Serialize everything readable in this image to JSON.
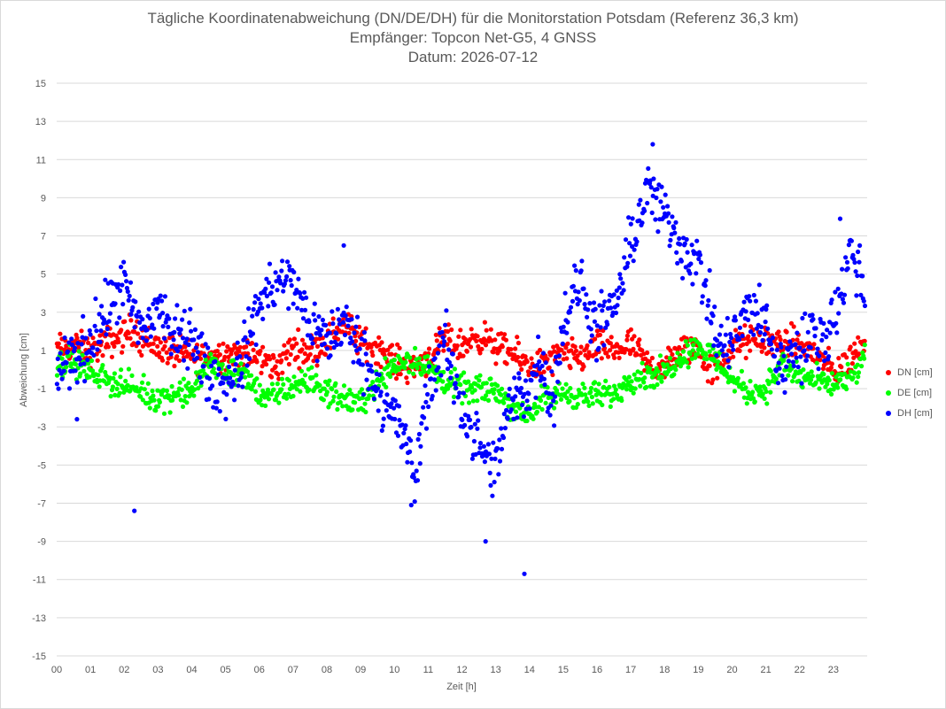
{
  "chart_data": {
    "type": "scatter",
    "title": "Tägliche Koordinatenabweichung (DN/DE/DH) für die Monitorstation Potsdam (Referenz 36,3 km)",
    "subtitle_1": "Empfänger: Topcon Net-G5, 4 GNSS",
    "subtitle_2": "Datum: 2026-07-12",
    "xlabel": "Zeit [h]",
    "ylabel": "Abweichung [cm]",
    "xlim": [
      0,
      24
    ],
    "ylim": [
      -15,
      15
    ],
    "x_ticks": [
      0,
      1,
      2,
      3,
      4,
      5,
      6,
      7,
      8,
      9,
      10,
      11,
      12,
      13,
      14,
      15,
      16,
      17,
      18,
      19,
      20,
      21,
      22,
      23
    ],
    "x_tick_labels": [
      "00",
      "01",
      "02",
      "03",
      "04",
      "05",
      "06",
      "07",
      "08",
      "09",
      "10",
      "11",
      "12",
      "13",
      "14",
      "15",
      "16",
      "17",
      "18",
      "19",
      "20",
      "21",
      "22",
      "23"
    ],
    "y_ticks": [
      15,
      13,
      11,
      9,
      7,
      5,
      3,
      1,
      -1,
      -3,
      -5,
      -7,
      -9,
      -11,
      -13,
      -15
    ],
    "y_tick_labels": [
      "15",
      "13",
      "11",
      "9",
      "7",
      "5",
      "3",
      "1",
      "-1",
      "-3",
      "-5",
      "-7",
      "-9",
      "-11",
      "-13",
      "-15"
    ],
    "grid": "horizontal",
    "legend_position": "right",
    "samples_per_hour": 40,
    "series": [
      {
        "name": "DN [cm]",
        "color": "#ff0000",
        "anchors": [
          [
            0.0,
            1.0
          ],
          [
            0.5,
            1.2
          ],
          [
            1.0,
            1.0
          ],
          [
            1.5,
            1.4
          ],
          [
            2.0,
            1.8
          ],
          [
            2.3,
            2.2
          ],
          [
            2.5,
            1.6
          ],
          [
            3.0,
            1.2
          ],
          [
            3.5,
            0.9
          ],
          [
            4.0,
            0.7
          ],
          [
            4.5,
            0.7
          ],
          [
            5.0,
            0.9
          ],
          [
            5.5,
            0.8
          ],
          [
            6.0,
            0.6
          ],
          [
            6.5,
            0.1
          ],
          [
            7.0,
            1.2
          ],
          [
            7.5,
            1.0
          ],
          [
            8.0,
            1.5
          ],
          [
            8.5,
            2.5
          ],
          [
            9.0,
            1.4
          ],
          [
            9.5,
            1.2
          ],
          [
            10.0,
            0.4
          ],
          [
            10.5,
            0.1
          ],
          [
            11.0,
            0.6
          ],
          [
            11.5,
            1.5
          ],
          [
            12.0,
            1.2
          ],
          [
            12.5,
            1.8
          ],
          [
            13.0,
            1.2
          ],
          [
            13.5,
            0.8
          ],
          [
            14.0,
            0.2
          ],
          [
            14.5,
            0.3
          ],
          [
            15.0,
            0.8
          ],
          [
            15.5,
            0.6
          ],
          [
            16.0,
            1.2
          ],
          [
            16.5,
            1.0
          ],
          [
            17.0,
            1.3
          ],
          [
            17.5,
            0.2
          ],
          [
            18.0,
            0.1
          ],
          [
            18.5,
            1.0
          ],
          [
            19.0,
            1.2
          ],
          [
            19.3,
            0.0
          ],
          [
            19.6,
            0.2
          ],
          [
            20.0,
            1.2
          ],
          [
            20.5,
            1.5
          ],
          [
            21.0,
            1.5
          ],
          [
            21.5,
            1.4
          ],
          [
            22.0,
            1.3
          ],
          [
            22.5,
            0.8
          ],
          [
            23.0,
            -0.2
          ],
          [
            23.4,
            0.3
          ],
          [
            23.8,
            1.2
          ],
          [
            24.0,
            2.0
          ]
        ]
      },
      {
        "name": "DE [cm]",
        "color": "#00ff00",
        "anchors": [
          [
            0.0,
            0.3
          ],
          [
            0.5,
            0.5
          ],
          [
            1.0,
            -0.2
          ],
          [
            1.5,
            -0.5
          ],
          [
            2.0,
            -0.8
          ],
          [
            2.5,
            -1.2
          ],
          [
            3.0,
            -1.5
          ],
          [
            3.5,
            -1.3
          ],
          [
            4.0,
            -1.2
          ],
          [
            4.5,
            0.3
          ],
          [
            5.0,
            0.0
          ],
          [
            5.5,
            -0.3
          ],
          [
            6.0,
            -1.2
          ],
          [
            6.5,
            -1.5
          ],
          [
            7.0,
            -0.8
          ],
          [
            7.5,
            -0.6
          ],
          [
            8.0,
            -1.2
          ],
          [
            8.5,
            -1.5
          ],
          [
            9.0,
            -1.8
          ],
          [
            9.5,
            -0.6
          ],
          [
            10.0,
            0.3
          ],
          [
            10.5,
            0.5
          ],
          [
            11.0,
            0.1
          ],
          [
            11.5,
            -0.6
          ],
          [
            12.0,
            -1.0
          ],
          [
            12.5,
            -1.1
          ],
          [
            13.0,
            -1.0
          ],
          [
            13.5,
            -2.0
          ],
          [
            14.0,
            -2.3
          ],
          [
            14.5,
            -1.5
          ],
          [
            15.0,
            -1.2
          ],
          [
            15.5,
            -1.4
          ],
          [
            16.0,
            -1.4
          ],
          [
            16.5,
            -1.3
          ],
          [
            17.0,
            -0.4
          ],
          [
            17.5,
            -0.3
          ],
          [
            18.0,
            -0.2
          ],
          [
            18.5,
            0.8
          ],
          [
            19.0,
            1.2
          ],
          [
            19.5,
            0.6
          ],
          [
            20.0,
            -0.5
          ],
          [
            20.5,
            -1.2
          ],
          [
            21.0,
            -1.0
          ],
          [
            21.5,
            0.3
          ],
          [
            22.0,
            -0.4
          ],
          [
            22.5,
            -0.6
          ],
          [
            23.0,
            -0.8
          ],
          [
            23.5,
            -0.6
          ],
          [
            24.0,
            0.8
          ]
        ]
      },
      {
        "name": "DH [cm]",
        "color": "#0000ff",
        "anchors": [
          [
            0.0,
            0.0
          ],
          [
            0.5,
            0.6
          ],
          [
            1.0,
            1.5
          ],
          [
            1.5,
            3.0
          ],
          [
            2.0,
            4.5
          ],
          [
            2.3,
            2.5
          ],
          [
            2.6,
            2.0
          ],
          [
            3.0,
            3.5
          ],
          [
            3.5,
            1.5
          ],
          [
            4.0,
            2.0
          ],
          [
            4.5,
            -0.5
          ],
          [
            5.0,
            -1.0
          ],
          [
            5.5,
            0.5
          ],
          [
            6.0,
            3.5
          ],
          [
            6.5,
            4.5
          ],
          [
            7.0,
            4.5
          ],
          [
            7.5,
            2.5
          ],
          [
            8.0,
            1.5
          ],
          [
            8.5,
            2.5
          ],
          [
            9.0,
            1.0
          ],
          [
            9.5,
            -1.0
          ],
          [
            10.0,
            -2.5
          ],
          [
            10.3,
            -3.5
          ],
          [
            10.6,
            -6.0
          ],
          [
            11.0,
            -1.0
          ],
          [
            11.5,
            1.5
          ],
          [
            12.0,
            -2.0
          ],
          [
            12.5,
            -4.0
          ],
          [
            12.8,
            -5.0
          ],
          [
            13.0,
            -5.5
          ],
          [
            13.3,
            -2.5
          ],
          [
            13.6,
            -1.5
          ],
          [
            14.0,
            -1.0
          ],
          [
            14.3,
            0.5
          ],
          [
            14.7,
            -1.5
          ],
          [
            15.0,
            2.5
          ],
          [
            15.5,
            4.5
          ],
          [
            16.0,
            2.0
          ],
          [
            16.5,
            3.0
          ],
          [
            17.0,
            6.5
          ],
          [
            17.5,
            9.5
          ],
          [
            18.0,
            8.0
          ],
          [
            18.5,
            6.5
          ],
          [
            19.0,
            5.5
          ],
          [
            19.3,
            3.5
          ],
          [
            19.6,
            1.0
          ],
          [
            20.0,
            1.5
          ],
          [
            20.5,
            3.0
          ],
          [
            21.0,
            2.5
          ],
          [
            21.4,
            0.0
          ],
          [
            21.8,
            1.0
          ],
          [
            22.3,
            1.5
          ],
          [
            22.8,
            2.0
          ],
          [
            23.2,
            3.5
          ],
          [
            23.5,
            6.5
          ],
          [
            23.8,
            5.0
          ],
          [
            24.0,
            3.0
          ]
        ],
        "outliers": [
          [
            2.3,
            -7.4
          ],
          [
            12.7,
            -9.0
          ],
          [
            13.85,
            -10.7
          ],
          [
            10.5,
            -7.1
          ],
          [
            17.65,
            11.8
          ],
          [
            23.2,
            7.9
          ],
          [
            8.5,
            6.5
          ],
          [
            0.6,
            -2.6
          ]
        ]
      }
    ],
    "spread": [
      0.7,
      0.6,
      1.3
    ]
  },
  "legend": [
    {
      "label": "DN [cm]",
      "color": "#ff0000"
    },
    {
      "label": "DE [cm]",
      "color": "#00ff00"
    },
    {
      "label": "DH [cm]",
      "color": "#0000ff"
    }
  ],
  "colors": {
    "gridline": "#d9d9d9",
    "text": "#595959",
    "background": "#ffffff"
  }
}
